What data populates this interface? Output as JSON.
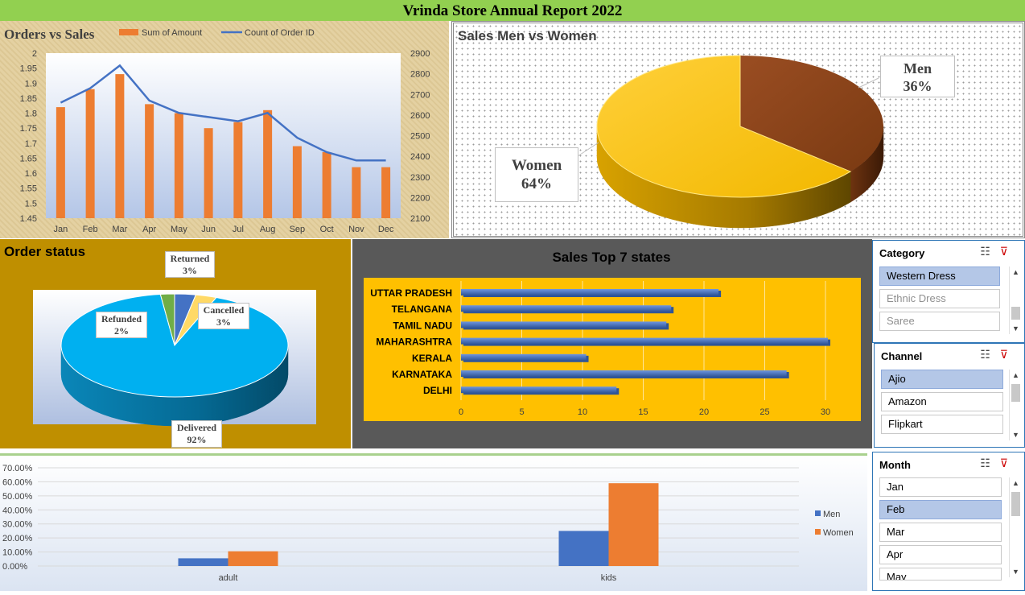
{
  "report_title": "Vrinda Store Annual Report 2022",
  "colors": {
    "title_bar": "#92d050",
    "bar_orange": "#ed7d31",
    "line_blue": "#4472c4",
    "status_panel": "#bf8f00",
    "states_panel": "#595959",
    "states_plot": "#ffc000",
    "men": "#843c0c",
    "women": "#ffc000"
  },
  "orders_vs_sales": {
    "title": "Orders vs Sales",
    "chart_data": {
      "type": "bar",
      "title": "Orders vs Sales",
      "categories": [
        "Jan",
        "Feb",
        "Mar",
        "Apr",
        "May",
        "Jun",
        "Jul",
        "Aug",
        "Sep",
        "Oct",
        "Nov",
        "Dec"
      ],
      "series": [
        {
          "name": "Sum of Amount",
          "type": "bar",
          "axis": "left",
          "values": [
            1.82,
            1.88,
            1.93,
            1.83,
            1.8,
            1.75,
            1.77,
            1.81,
            1.69,
            1.67,
            1.62,
            1.62
          ]
        },
        {
          "name": "Count of Order ID",
          "type": "line",
          "axis": "right",
          "values": [
            2660,
            2730,
            2840,
            2670,
            2610,
            2590,
            2570,
            2610,
            2490,
            2420,
            2380,
            2380
          ]
        }
      ],
      "y_left_ticks": [
        "2",
        "1.95",
        "1.9",
        "1.85",
        "1.8",
        "1.75",
        "1.7",
        "1.65",
        "1.6",
        "1.55",
        "1.5",
        "1.45"
      ],
      "y_right_ticks": [
        "2900",
        "2800",
        "2700",
        "2600",
        "2500",
        "2400",
        "2300",
        "2200",
        "2100"
      ],
      "ylim_left": [
        1.45,
        2.0
      ],
      "ylim_right": [
        2100,
        2900
      ],
      "legend": "top"
    }
  },
  "gender_sales": {
    "title": "Sales Men vs Women",
    "chart_data": {
      "type": "pie",
      "title": "Sales Men vs Women",
      "categories": [
        "Men",
        "Women"
      ],
      "values": [
        36,
        64
      ],
      "labels": [
        "36%",
        "64%"
      ]
    }
  },
  "order_status": {
    "title": "Order status",
    "chart_data": {
      "type": "pie",
      "title": "Order status",
      "categories": [
        "Delivered",
        "Returned",
        "Cancelled",
        "Refunded"
      ],
      "values": [
        92,
        3,
        3,
        2
      ],
      "labels": [
        "92%",
        "3%",
        "3%",
        "2%"
      ]
    }
  },
  "top_states": {
    "title": "Sales Top 7 states",
    "chart_data": {
      "type": "bar",
      "orientation": "horizontal",
      "title": "Sales Top 7 states",
      "categories": [
        "UTTAR PRADESH",
        "TELANGANA",
        "TAMIL NADU",
        "MAHARASHTRA",
        "KERALA",
        "KARNATAKA",
        "DELHI"
      ],
      "values": [
        21.2,
        17.3,
        16.9,
        30.2,
        10.3,
        26.8,
        12.8
      ],
      "x_ticks": [
        "0",
        "5",
        "10",
        "15",
        "20",
        "25",
        "30"
      ],
      "xlim": [
        0,
        30
      ]
    }
  },
  "age_gender": {
    "chart_data": {
      "type": "bar",
      "categories": [
        "adult",
        "kids"
      ],
      "series": [
        {
          "name": "Men",
          "values": [
            5.5,
            25.0
          ]
        },
        {
          "name": "Women",
          "values": [
            10.5,
            59.0
          ]
        }
      ],
      "y_ticks": [
        "70.00%",
        "60.00%",
        "50.00%",
        "40.00%",
        "30.00%",
        "20.00%",
        "10.00%",
        "0.00%"
      ],
      "ylim": [
        0,
        70
      ],
      "legend": "right"
    }
  },
  "slicers": {
    "category": {
      "title": "Category",
      "items": [
        {
          "label": "Western Dress",
          "state": "selected"
        },
        {
          "label": "Ethnic Dress",
          "state": "dim"
        },
        {
          "label": "Saree",
          "state": "dim"
        }
      ]
    },
    "channel": {
      "title": "Channel",
      "items": [
        {
          "label": "Ajio",
          "state": "selected"
        },
        {
          "label": "Amazon",
          "state": "normal"
        },
        {
          "label": "Flipkart",
          "state": "normal"
        }
      ]
    },
    "month": {
      "title": "Month",
      "items": [
        {
          "label": "Jan",
          "state": "normal"
        },
        {
          "label": "Feb",
          "state": "selected"
        },
        {
          "label": "Mar",
          "state": "normal"
        },
        {
          "label": "Apr",
          "state": "normal"
        },
        {
          "label": "May",
          "state": "normal"
        }
      ]
    },
    "icons": [
      "multi-select-icon",
      "clear-filter-icon"
    ]
  }
}
